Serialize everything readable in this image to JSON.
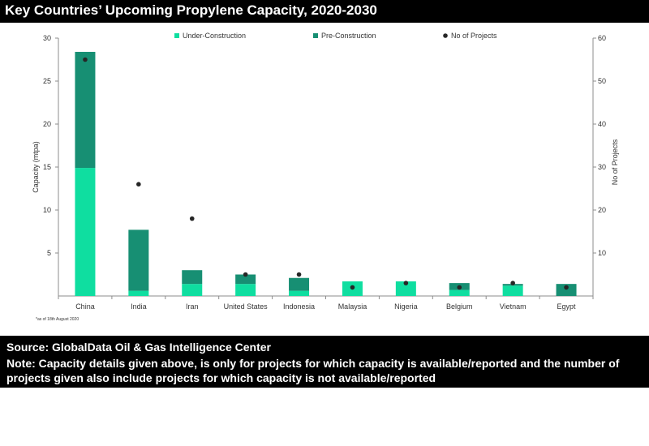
{
  "header": {
    "title": "Key Countries’ Upcoming Propylene Capacity, 2020-2030"
  },
  "footer": {
    "source": "Source: GlobalData Oil & Gas Intelligence Center",
    "note": "Note: Capacity details given above, is only for projects for which capacity is available/reported and the number of projects given also include projects for which capacity is not available/reported"
  },
  "chart_data": {
    "type": "bar",
    "stacked": true,
    "categories": [
      "China",
      "India",
      "Iran",
      "United States",
      "Indonesia",
      "Malaysia",
      "Nigeria",
      "Belgium",
      "Vietnam",
      "Egypt"
    ],
    "series": [
      {
        "name": "Under-Construction",
        "axis": "left",
        "color": "#0fdea0",
        "values": [
          14.9,
          0.6,
          1.4,
          1.4,
          0.6,
          1.7,
          1.7,
          0.7,
          1.2,
          0.0
        ]
      },
      {
        "name": "Pre-Construction",
        "axis": "left",
        "color": "#178f73",
        "values": [
          13.5,
          7.1,
          1.6,
          1.1,
          1.5,
          0.0,
          0.0,
          0.8,
          0.2,
          1.4
        ]
      },
      {
        "name": "No of Projects",
        "axis": "right",
        "marker": "dot",
        "color": "#262626",
        "values": [
          55,
          26,
          18,
          5,
          5,
          2,
          3,
          2,
          3,
          2
        ]
      }
    ],
    "ylabel": "Capacity (mtpa)",
    "y2label": "No of Projects",
    "ylim": [
      0,
      30
    ],
    "y2lim": [
      0,
      60
    ],
    "yticks": [
      5,
      10,
      15,
      20,
      25,
      30
    ],
    "y2ticks": [
      10,
      20,
      30,
      40,
      50,
      60
    ],
    "legend": "top",
    "grid": false,
    "footnote": "*as of 18th August 2020"
  }
}
